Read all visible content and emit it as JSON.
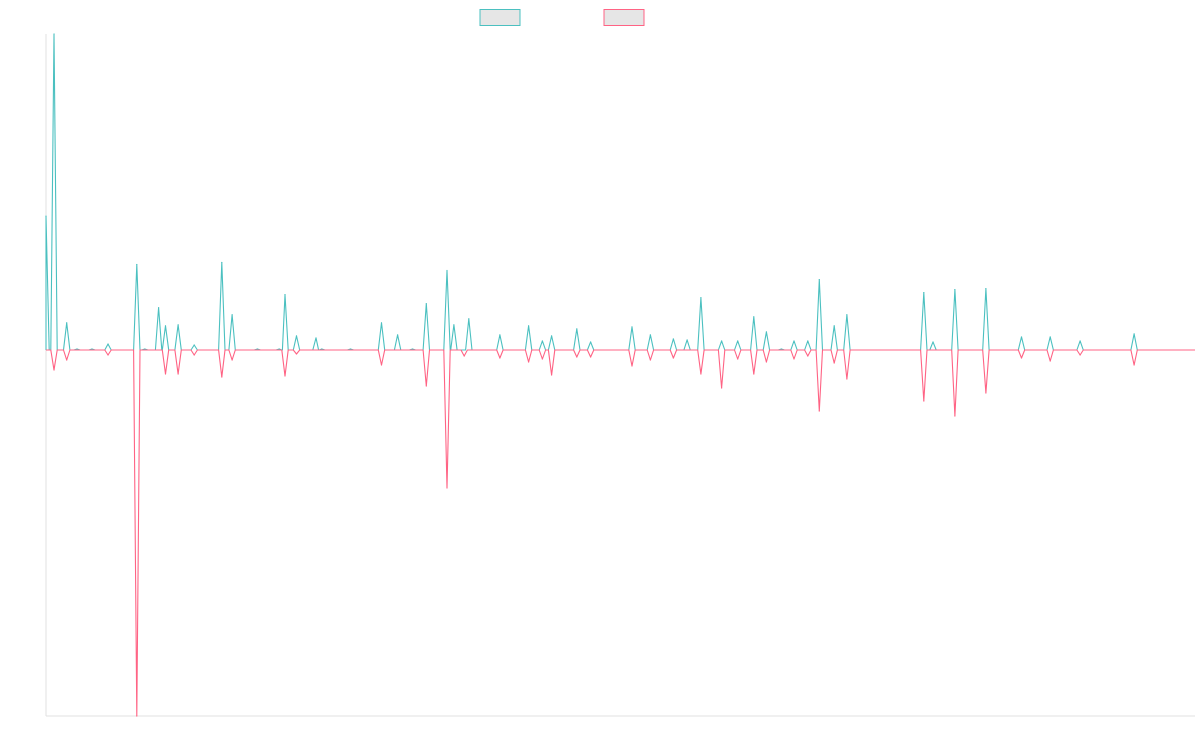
{
  "colors": {
    "series_a": "#4bc0c0",
    "series_b": "#ff6384",
    "legend_fill": "#e6e6e6",
    "axis": "#e0e0e0"
  },
  "legend": {
    "placement": "top-center",
    "items": [
      {
        "label": "",
        "color": "#4bc0c0"
      },
      {
        "label": "",
        "color": "#ff6384"
      }
    ]
  },
  "chart_data": {
    "type": "line",
    "title": "",
    "xlabel": "",
    "ylabel": "",
    "grid": false,
    "tick_labels_visible": false,
    "x_range": [
      0,
      1000
    ],
    "ylim": [
      -366,
      314
    ],
    "series": [
      {
        "role": "upper",
        "color": "#4bc0c0",
        "spikes": [
          [
            0,
            133
          ],
          [
            7,
            314
          ],
          [
            18,
            27
          ],
          [
            27,
            1
          ],
          [
            40,
            1
          ],
          [
            54,
            6
          ],
          [
            79,
            85
          ],
          [
            86,
            1
          ],
          [
            98,
            42
          ],
          [
            104,
            24
          ],
          [
            115,
            25
          ],
          [
            129,
            5
          ],
          [
            153,
            87
          ],
          [
            162,
            35
          ],
          [
            184,
            1
          ],
          [
            203,
            1
          ],
          [
            208,
            55
          ],
          [
            218,
            14
          ],
          [
            235,
            12
          ],
          [
            240,
            1
          ],
          [
            265,
            1
          ],
          [
            292,
            27
          ],
          [
            306,
            15
          ],
          [
            319,
            1
          ],
          [
            331,
            46
          ],
          [
            349,
            79
          ],
          [
            355,
            25
          ],
          [
            368,
            31
          ],
          [
            395,
            15
          ],
          [
            420,
            24
          ],
          [
            432,
            9
          ],
          [
            440,
            14
          ],
          [
            462,
            21
          ],
          [
            474,
            8
          ],
          [
            510,
            23
          ],
          [
            526,
            15
          ],
          [
            546,
            11
          ],
          [
            558,
            10
          ],
          [
            570,
            52
          ],
          [
            588,
            9
          ],
          [
            602,
            9
          ],
          [
            616,
            33
          ],
          [
            627,
            18
          ],
          [
            640,
            1
          ],
          [
            651,
            9
          ],
          [
            663,
            9
          ],
          [
            673,
            70
          ],
          [
            686,
            24
          ],
          [
            697,
            35
          ],
          [
            764,
            57
          ],
          [
            772,
            8
          ],
          [
            791,
            60
          ],
          [
            818,
            61
          ],
          [
            849,
            13
          ],
          [
            874,
            13
          ],
          [
            900,
            9
          ],
          [
            947,
            16
          ]
        ]
      },
      {
        "role": "lower",
        "color": "#ff6384",
        "spikes": [
          [
            7,
            -20
          ],
          [
            18,
            -10
          ],
          [
            54,
            -5
          ],
          [
            79,
            -366
          ],
          [
            104,
            -24
          ],
          [
            115,
            -24
          ],
          [
            129,
            -5
          ],
          [
            153,
            -27
          ],
          [
            162,
            -10
          ],
          [
            208,
            -26
          ],
          [
            218,
            -4
          ],
          [
            292,
            -15
          ],
          [
            331,
            -36
          ],
          [
            349,
            -138
          ],
          [
            364,
            -6
          ],
          [
            395,
            -8
          ],
          [
            420,
            -12
          ],
          [
            432,
            -9
          ],
          [
            440,
            -25
          ],
          [
            462,
            -7
          ],
          [
            474,
            -7
          ],
          [
            510,
            -16
          ],
          [
            526,
            -10
          ],
          [
            546,
            -8
          ],
          [
            570,
            -24
          ],
          [
            588,
            -38
          ],
          [
            602,
            -9
          ],
          [
            616,
            -24
          ],
          [
            627,
            -12
          ],
          [
            651,
            -9
          ],
          [
            663,
            -6
          ],
          [
            673,
            -61
          ],
          [
            686,
            -13
          ],
          [
            697,
            -29
          ],
          [
            764,
            -51
          ],
          [
            791,
            -66
          ],
          [
            818,
            -43
          ],
          [
            849,
            -8
          ],
          [
            874,
            -11
          ],
          [
            900,
            -5
          ],
          [
            947,
            -15
          ]
        ]
      }
    ]
  }
}
